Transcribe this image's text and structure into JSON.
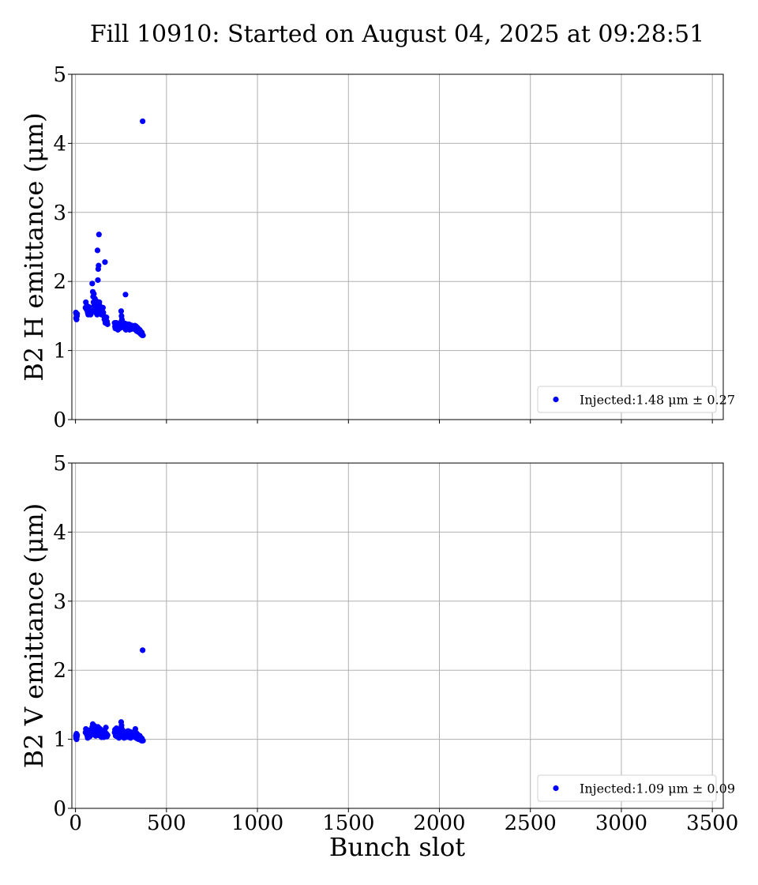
{
  "figure": {
    "title": "Fill 10910: Started on August 04, 2025 at 09:28:51",
    "xlabel": "Bunch slot"
  },
  "chart_data": [
    {
      "type": "scatter",
      "ylabel": "B2 H emittance (μm)",
      "xlim": [
        -20,
        3560
      ],
      "ylim": [
        0,
        5
      ],
      "xticks": [
        0,
        500,
        1000,
        1500,
        2000,
        2500,
        3000,
        3500
      ],
      "yticks": [
        0,
        1,
        2,
        3,
        4,
        5
      ],
      "show_xtick_labels": false,
      "grid": true,
      "legend_position": "bottom-right",
      "series": [
        {
          "name": "Injected:1.48 μm ± 0.27",
          "color": "#0000ff",
          "points": [
            [
              2,
              1.55
            ],
            [
              3,
              1.47
            ],
            [
              5,
              1.52
            ],
            [
              6,
              1.45
            ],
            [
              8,
              1.5
            ],
            [
              9,
              1.53
            ],
            [
              55,
              1.62
            ],
            [
              57,
              1.7
            ],
            [
              60,
              1.6
            ],
            [
              62,
              1.65
            ],
            [
              65,
              1.58
            ],
            [
              67,
              1.55
            ],
            [
              70,
              1.52
            ],
            [
              72,
              1.6
            ],
            [
              75,
              1.63
            ],
            [
              78,
              1.55
            ],
            [
              80,
              1.58
            ],
            [
              83,
              1.52
            ],
            [
              85,
              1.56
            ],
            [
              92,
              1.97
            ],
            [
              95,
              1.85
            ],
            [
              97,
              1.78
            ],
            [
              99,
              1.7
            ],
            [
              101,
              1.82
            ],
            [
              103,
              1.65
            ],
            [
              105,
              1.6
            ],
            [
              107,
              1.75
            ],
            [
              109,
              1.68
            ],
            [
              111,
              1.55
            ],
            [
              113,
              1.72
            ],
            [
              115,
              1.62
            ],
            [
              117,
              1.58
            ],
            [
              119,
              1.52
            ],
            [
              121,
              2.45
            ],
            [
              123,
              2.02
            ],
            [
              125,
              2.18
            ],
            [
              127,
              2.23
            ],
            [
              129,
              2.68
            ],
            [
              131,
              1.7
            ],
            [
              133,
              1.65
            ],
            [
              135,
              1.6
            ],
            [
              137,
              1.55
            ],
            [
              139,
              1.62
            ],
            [
              141,
              1.58
            ],
            [
              143,
              1.52
            ],
            [
              145,
              1.6
            ],
            [
              147,
              1.57
            ],
            [
              149,
              1.55
            ],
            [
              151,
              1.62
            ],
            [
              153,
              1.55
            ],
            [
              156,
              1.5
            ],
            [
              159,
              1.45
            ],
            [
              162,
              2.28
            ],
            [
              164,
              1.4
            ],
            [
              167,
              1.43
            ],
            [
              170,
              1.48
            ],
            [
              173,
              1.42
            ],
            [
              176,
              1.38
            ],
            [
              215,
              1.4
            ],
            [
              217,
              1.35
            ],
            [
              219,
              1.32
            ],
            [
              221,
              1.38
            ],
            [
              223,
              1.36
            ],
            [
              225,
              1.4
            ],
            [
              227,
              1.33
            ],
            [
              229,
              1.37
            ],
            [
              231,
              1.35
            ],
            [
              233,
              1.3
            ],
            [
              235,
              1.34
            ],
            [
              237,
              1.38
            ],
            [
              239,
              1.36
            ],
            [
              241,
              1.32
            ],
            [
              243,
              1.35
            ],
            [
              245,
              1.4
            ],
            [
              247,
              1.37
            ],
            [
              249,
              1.33
            ],
            [
              251,
              1.57
            ],
            [
              253,
              1.5
            ],
            [
              255,
              1.45
            ],
            [
              257,
              1.42
            ],
            [
              259,
              1.38
            ],
            [
              261,
              1.35
            ],
            [
              263,
              1.4
            ],
            [
              265,
              1.36
            ],
            [
              267,
              1.33
            ],
            [
              269,
              1.37
            ],
            [
              271,
              1.35
            ],
            [
              273,
              1.39
            ],
            [
              275,
              1.81
            ],
            [
              277,
              1.3
            ],
            [
              279,
              1.36
            ],
            [
              281,
              1.33
            ],
            [
              283,
              1.38
            ],
            [
              285,
              1.35
            ],
            [
              289,
              1.32
            ],
            [
              291,
              1.36
            ],
            [
              293,
              1.38
            ],
            [
              295,
              1.34
            ],
            [
              297,
              1.3
            ],
            [
              299,
              1.35
            ],
            [
              301,
              1.37
            ],
            [
              303,
              1.33
            ],
            [
              305,
              1.35
            ],
            [
              307,
              1.31
            ],
            [
              309,
              1.34
            ],
            [
              311,
              1.36
            ],
            [
              325,
              1.33
            ],
            [
              327,
              1.36
            ],
            [
              329,
              1.3
            ],
            [
              331,
              1.34
            ],
            [
              333,
              1.35
            ],
            [
              335,
              1.32
            ],
            [
              337,
              1.28
            ],
            [
              339,
              1.3
            ],
            [
              341,
              1.33
            ],
            [
              343,
              1.29
            ],
            [
              345,
              1.27
            ],
            [
              347,
              1.31
            ],
            [
              349,
              1.28
            ],
            [
              351,
              1.26
            ],
            [
              353,
              1.3
            ],
            [
              355,
              1.25
            ],
            [
              357,
              1.28
            ],
            [
              359,
              1.24
            ],
            [
              361,
              1.27
            ],
            [
              363,
              1.23
            ],
            [
              365,
              1.26
            ],
            [
              367,
              1.22
            ],
            [
              369,
              4.32
            ],
            [
              371,
              1.22
            ]
          ]
        }
      ]
    },
    {
      "type": "scatter",
      "ylabel": "B2 V emittance (μm)",
      "xlim": [
        -20,
        3560
      ],
      "ylim": [
        0,
        5
      ],
      "xticks": [
        0,
        500,
        1000,
        1500,
        2000,
        2500,
        3000,
        3500
      ],
      "yticks": [
        0,
        1,
        2,
        3,
        4,
        5
      ],
      "show_xtick_labels": true,
      "grid": true,
      "legend_position": "bottom-right",
      "series": [
        {
          "name": "Injected:1.09 μm ± 0.09",
          "color": "#0000ff",
          "points": [
            [
              2,
              1.05
            ],
            [
              3,
              1.02
            ],
            [
              5,
              1.08
            ],
            [
              6,
              1.0
            ],
            [
              8,
              1.04
            ],
            [
              9,
              1.06
            ],
            [
              55,
              1.1
            ],
            [
              57,
              1.15
            ],
            [
              60,
              1.08
            ],
            [
              62,
              1.12
            ],
            [
              65,
              1.05
            ],
            [
              67,
              1.02
            ],
            [
              70,
              1.1
            ],
            [
              72,
              1.13
            ],
            [
              75,
              1.07
            ],
            [
              78,
              1.04
            ],
            [
              80,
              1.09
            ],
            [
              83,
              1.11
            ],
            [
              85,
              1.06
            ],
            [
              92,
              1.18
            ],
            [
              95,
              1.22
            ],
            [
              97,
              1.15
            ],
            [
              99,
              1.1
            ],
            [
              101,
              1.2
            ],
            [
              103,
              1.12
            ],
            [
              105,
              1.08
            ],
            [
              107,
              1.16
            ],
            [
              109,
              1.13
            ],
            [
              111,
              1.05
            ],
            [
              113,
              1.18
            ],
            [
              115,
              1.1
            ],
            [
              117,
              1.07
            ],
            [
              119,
              1.12
            ],
            [
              121,
              1.15
            ],
            [
              123,
              1.18
            ],
            [
              125,
              1.1
            ],
            [
              127,
              1.06
            ],
            [
              129,
              1.12
            ],
            [
              131,
              1.16
            ],
            [
              133,
              1.09
            ],
            [
              135,
              1.05
            ],
            [
              137,
              1.11
            ],
            [
              139,
              1.14
            ],
            [
              141,
              1.07
            ],
            [
              143,
              1.03
            ],
            [
              145,
              1.1
            ],
            [
              147,
              1.08
            ],
            [
              149,
              1.12
            ],
            [
              151,
              1.06
            ],
            [
              153,
              1.09
            ],
            [
              156,
              1.03
            ],
            [
              159,
              1.07
            ],
            [
              162,
              1.05
            ],
            [
              164,
              1.1
            ],
            [
              167,
              1.17
            ],
            [
              170,
              1.08
            ],
            [
              173,
              1.04
            ],
            [
              176,
              1.06
            ],
            [
              215,
              1.1
            ],
            [
              217,
              1.14
            ],
            [
              219,
              1.08
            ],
            [
              221,
              1.05
            ],
            [
              223,
              1.12
            ],
            [
              225,
              1.16
            ],
            [
              227,
              1.09
            ],
            [
              229,
              1.04
            ],
            [
              231,
              1.11
            ],
            [
              233,
              1.07
            ],
            [
              235,
              1.13
            ],
            [
              237,
              1.06
            ],
            [
              239,
              1.02
            ],
            [
              241,
              1.09
            ],
            [
              243,
              1.15
            ],
            [
              245,
              1.08
            ],
            [
              247,
              1.05
            ],
            [
              249,
              1.12
            ],
            [
              251,
              1.25
            ],
            [
              253,
              1.2
            ],
            [
              255,
              1.15
            ],
            [
              257,
              1.1
            ],
            [
              259,
              1.06
            ],
            [
              261,
              1.12
            ],
            [
              263,
              1.04
            ],
            [
              265,
              1.08
            ],
            [
              267,
              1.02
            ],
            [
              269,
              1.07
            ],
            [
              271,
              1.11
            ],
            [
              273,
              1.05
            ],
            [
              275,
              1.09
            ],
            [
              277,
              1.03
            ],
            [
              279,
              1.06
            ],
            [
              281,
              1.1
            ],
            [
              283,
              1.04
            ],
            [
              285,
              1.08
            ],
            [
              289,
              1.12
            ],
            [
              291,
              1.07
            ],
            [
              293,
              1.03
            ],
            [
              295,
              1.09
            ],
            [
              297,
              1.05
            ],
            [
              299,
              1.11
            ],
            [
              301,
              1.06
            ],
            [
              303,
              1.02
            ],
            [
              305,
              1.08
            ],
            [
              307,
              1.04
            ],
            [
              309,
              1.1
            ],
            [
              311,
              1.05
            ],
            [
              325,
              1.08
            ],
            [
              327,
              1.03
            ],
            [
              329,
              1.15
            ],
            [
              331,
              1.06
            ],
            [
              333,
              1.02
            ],
            [
              335,
              1.09
            ],
            [
              337,
              1.05
            ],
            [
              339,
              1.01
            ],
            [
              341,
              1.07
            ],
            [
              343,
              1.03
            ],
            [
              345,
              1.06
            ],
            [
              347,
              1.0
            ],
            [
              349,
              1.04
            ],
            [
              351,
              1.02
            ],
            [
              353,
              1.05
            ],
            [
              355,
              1.0
            ],
            [
              357,
              1.03
            ],
            [
              359,
              0.99
            ],
            [
              361,
              1.02
            ],
            [
              363,
              0.98
            ],
            [
              365,
              1.01
            ],
            [
              367,
              0.99
            ],
            [
              369,
              2.29
            ],
            [
              371,
              0.98
            ]
          ]
        }
      ]
    }
  ]
}
